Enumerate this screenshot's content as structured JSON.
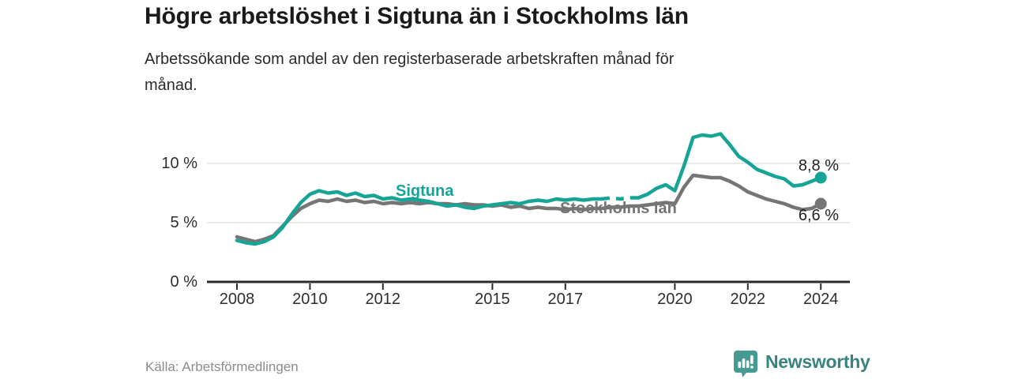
{
  "header": {
    "title": "Högre arbetslöshet i Sigtuna än i Stockholms län",
    "subtitle_line1": "Arbetssökande som andel av den registerbaserade arbetskraften månad för",
    "subtitle_line2": "månad."
  },
  "chart_data": {
    "type": "line",
    "title": "Högre arbetslöshet i Sigtuna än i Stockholms län",
    "subtitle": "Arbetssökande som andel av den registerbaserade arbetskraften månad för månad.",
    "unit": "%",
    "grid": "horizontal",
    "legend_position": "inline-labels",
    "ylim": [
      0,
      13.3
    ],
    "xlim": [
      2008,
      2024.8
    ],
    "y_ticks": [
      {
        "label": "0 %",
        "value": 0
      },
      {
        "label": "5 %",
        "value": 5
      },
      {
        "label": "10 %",
        "value": 10
      }
    ],
    "x_ticks": [
      {
        "label": "2008",
        "year": 2008
      },
      {
        "label": "2010",
        "year": 2010
      },
      {
        "label": "2012",
        "year": 2012
      },
      {
        "label": "2015",
        "year": 2015
      },
      {
        "label": "2017",
        "year": 2017
      },
      {
        "label": "2020",
        "year": 2020
      },
      {
        "label": "2022",
        "year": 2022
      },
      {
        "label": "2024",
        "year": 2024
      }
    ],
    "x": [
      2008,
      2008.25,
      2008.5,
      2008.75,
      2009,
      2009.25,
      2009.5,
      2009.75,
      2010,
      2010.25,
      2010.5,
      2010.75,
      2011,
      2011.25,
      2011.5,
      2011.75,
      2012,
      2012.25,
      2012.5,
      2012.75,
      2013,
      2013.25,
      2013.5,
      2013.75,
      2014,
      2014.25,
      2014.5,
      2014.75,
      2015,
      2015.25,
      2015.5,
      2015.75,
      2016,
      2016.25,
      2016.5,
      2016.75,
      2017,
      2017.25,
      2017.5,
      2017.75,
      2018,
      2018.25,
      2018.5,
      2018.75,
      2019,
      2019.25,
      2019.5,
      2019.75,
      2020,
      2020.25,
      2020.5,
      2020.75,
      2021,
      2021.25,
      2021.5,
      2021.75,
      2022,
      2022.25,
      2022.5,
      2022.75,
      2023,
      2023.25,
      2023.5,
      2023.75,
      2024
    ],
    "series": [
      {
        "name": "Stockholms län",
        "color": "#757575",
        "end_label": "6,6 %",
        "end_value": 6.6,
        "values": [
          3.8,
          3.6,
          3.4,
          3.6,
          3.9,
          4.7,
          5.5,
          6.2,
          6.6,
          6.9,
          6.8,
          7.0,
          6.8,
          6.9,
          6.7,
          6.8,
          6.6,
          6.7,
          6.6,
          6.7,
          6.6,
          6.7,
          6.6,
          6.6,
          6.5,
          6.6,
          6.5,
          6.5,
          6.4,
          6.5,
          6.3,
          6.4,
          6.2,
          6.3,
          6.2,
          6.2,
          6.1,
          6.2,
          6.1,
          6.2,
          6.2,
          6.3,
          6.3,
          6.4,
          6.4,
          6.5,
          6.6,
          6.7,
          6.6,
          8.0,
          9.0,
          8.9,
          8.8,
          8.8,
          8.5,
          8.1,
          7.6,
          7.3,
          7.0,
          6.8,
          6.6,
          6.3,
          6.1,
          6.2,
          6.6
        ]
      },
      {
        "name": "Sigtuna",
        "color": "#16a497",
        "end_label": "8,8 %",
        "end_value": 8.8,
        "dashed_x_range": [
          2018,
          2019
        ],
        "values": [
          3.5,
          3.3,
          3.2,
          3.4,
          3.8,
          4.6,
          5.7,
          6.7,
          7.4,
          7.7,
          7.5,
          7.6,
          7.3,
          7.5,
          7.2,
          7.3,
          7.0,
          7.1,
          6.9,
          7.0,
          6.9,
          6.8,
          6.6,
          6.4,
          6.5,
          6.3,
          6.2,
          6.4,
          6.5,
          6.6,
          6.7,
          6.6,
          6.8,
          6.9,
          6.8,
          7.0,
          6.9,
          7.0,
          6.9,
          7.0,
          7.0,
          7.1,
          7.0,
          7.1,
          7.1,
          7.4,
          7.9,
          8.2,
          7.7,
          9.8,
          12.2,
          12.4,
          12.3,
          12.5,
          11.6,
          10.6,
          10.1,
          9.5,
          9.2,
          8.9,
          8.7,
          8.1,
          8.2,
          8.5,
          8.8
        ]
      }
    ],
    "style": {
      "gridline_color": "#e2e2e2",
      "axis_color": "#2b2b2b",
      "tick_label_color": "#2e2e2e"
    }
  },
  "footer": {
    "source": "Källa: Arbetsförmedlingen",
    "brand": "Newsworthy",
    "brand_color": "#459a94"
  }
}
